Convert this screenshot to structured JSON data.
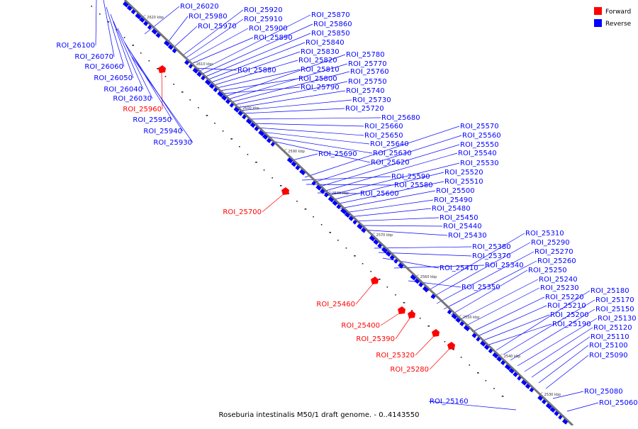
{
  "title": "Roseburia intestinalis M50/1 draft genome. - 0..4143550",
  "legend": [
    {
      "label": "Forward",
      "color": "#ff0000"
    },
    {
      "label": "Reverse",
      "color": "#0000ff"
    }
  ],
  "colors": {
    "forward": "#ff0000",
    "reverse": "#0000ff",
    "backbone": "#777777"
  },
  "ticks": [
    "2620 kbp",
    "2610 kbp",
    "2600 kbp",
    "2590 kbp",
    "2580 kbp",
    "2570 kbp",
    "2560 kbp",
    "2550 kbp",
    "2540 kbp",
    "2530 kbp"
  ],
  "labels": [
    "ROI_26020",
    "ROI_25980",
    "ROI_25970",
    "ROI_25920",
    "ROI_25910",
    "ROI_25900",
    "ROI_25890",
    "ROI_25870",
    "ROI_25860",
    "ROI_25850",
    "ROI_25840",
    "ROI_25830",
    "ROI_25820",
    "ROI_25810",
    "ROI_25800",
    "ROI_25790",
    "ROI_25880",
    "ROI_25780",
    "ROI_25770",
    "ROI_25760",
    "ROI_25750",
    "ROI_25740",
    "ROI_25730",
    "ROI_25720",
    "ROI_25680",
    "ROI_25660",
    "ROI_25650",
    "ROI_25640",
    "ROI_25630",
    "ROI_25620",
    "ROI_25690",
    "ROI_25570",
    "ROI_25560",
    "ROI_25550",
    "ROI_25540",
    "ROI_25530",
    "ROI_25520",
    "ROI_25510",
    "ROI_25500",
    "ROI_25490",
    "ROI_25480",
    "ROI_25450",
    "ROI_25440",
    "ROI_25430",
    "ROI_25590",
    "ROI_25580",
    "ROI_25600",
    "ROI_25380",
    "ROI_25370",
    "ROI_25340",
    "ROI_25410",
    "ROI_25350",
    "ROI_25310",
    "ROI_25290",
    "ROI_25270",
    "ROI_25260",
    "ROI_25250",
    "ROI_25240",
    "ROI_25230",
    "ROI_25220",
    "ROI_25210",
    "ROI_25200",
    "ROI_25190",
    "ROI_25180",
    "ROI_25170",
    "ROI_25150",
    "ROI_25130",
    "ROI_25120",
    "ROI_25110",
    "ROI_25100",
    "ROI_25090",
    "ROI_25080",
    "ROI_25060",
    "ROI_25160",
    "ROI_26100",
    "ROI_26070",
    "ROI_26060",
    "ROI_26050",
    "ROI_26040",
    "ROI_26030",
    "ROI_25960",
    "ROI_25950",
    "ROI_25940",
    "ROI_25930",
    "ROI_25700",
    "ROI_25460",
    "ROI_25400",
    "ROI_25390",
    "ROI_25320",
    "ROI_25280"
  ]
}
